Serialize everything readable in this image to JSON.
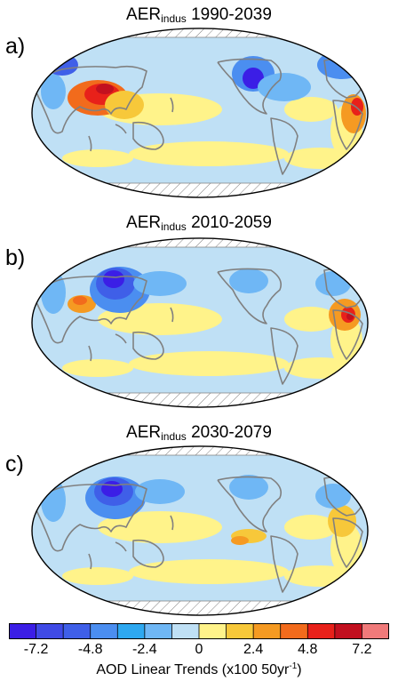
{
  "panels": [
    {
      "letter": "a)",
      "title_main": "AER",
      "title_sub": "indus",
      "title_years": "1990-2039"
    },
    {
      "letter": "b)",
      "title_main": "AER",
      "title_sub": "indus",
      "title_years": "2010-2059"
    },
    {
      "letter": "c)",
      "title_main": "AER",
      "title_sub": "indus",
      "title_years": "2030-2079"
    }
  ],
  "colors": {
    "deep_blue": "#3b1ee6",
    "blue": "#3f5fe8",
    "mid_blue": "#4b8ef0",
    "light_blue": "#6fb7f5",
    "pale_blue": "#bfe0f5",
    "pale_yellow": "#fff38a",
    "yellow": "#f7c83a",
    "orange": "#f59a22",
    "dark_orange": "#f26b1c",
    "red": "#e8211a",
    "dark_red": "#c2101f",
    "pink": "#f07a7a",
    "coast": "#808080",
    "hatch": "#7f7f7f"
  },
  "colorbar": {
    "colors": [
      "#3b1ee6",
      "#3f4ae6",
      "#3f5fe8",
      "#4b8ef0",
      "#2ea8f0",
      "#6fb7f5",
      "#bfe0f5",
      "#fff38a",
      "#f7c83a",
      "#f59a22",
      "#f26b1c",
      "#e8211a",
      "#c2101f",
      "#f07a7a"
    ],
    "tick_labels": [
      "-7.2",
      "-4.8",
      "-2.4",
      "0",
      "2.4",
      "4.8",
      "7.2"
    ],
    "tick_positions": [
      1,
      3,
      5,
      7,
      9,
      11,
      13
    ],
    "title_main": "AOD Linear Trends (x100 50yr",
    "title_sup": "-1",
    "title_end": ")"
  }
}
